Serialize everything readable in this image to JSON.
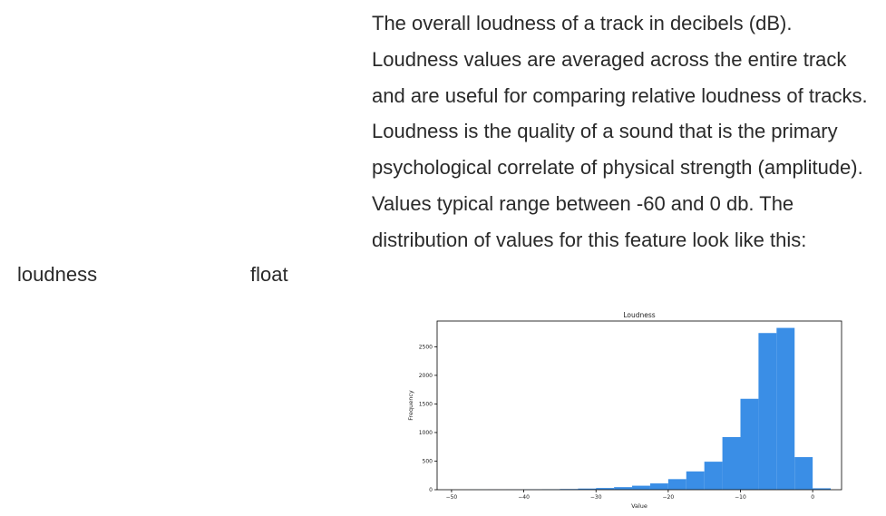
{
  "feature_row": {
    "name": "loudness",
    "type": "float",
    "description": "The overall loudness of a track in decibels (dB). Loudness values are averaged across the entire track and are useful for comparing relative loudness of tracks. Loudness is the quality of a sound that is the primary psychological correlate of physical strength (amplitude). Values typical range between -60 and 0 db. The distribution of values for this feature look like this:"
  },
  "chart_data": {
    "type": "bar",
    "title": "Loudness",
    "xlabel": "Value",
    "ylabel": "Frequency",
    "xlim": [
      -52,
      4
    ],
    "ylim": [
      0,
      2950
    ],
    "xticks": [
      -50,
      -40,
      -30,
      -20,
      -10,
      0
    ],
    "yticks": [
      0,
      500,
      1000,
      1500,
      2000,
      2500
    ],
    "bin_edges": [
      -47.5,
      -45,
      -42.5,
      -40,
      -37.5,
      -35,
      -32.5,
      -30,
      -27.5,
      -25,
      -22.5,
      -20,
      -17.5,
      -15,
      -12.5,
      -10,
      -7.5,
      -5,
      -2.5,
      0,
      2.5
    ],
    "values": [
      1,
      2,
      3,
      5,
      8,
      12,
      20,
      30,
      45,
      70,
      110,
      185,
      320,
      490,
      920,
      1590,
      2740,
      2830,
      570,
      25
    ],
    "color": "#3a8ee6",
    "grid": false
  }
}
